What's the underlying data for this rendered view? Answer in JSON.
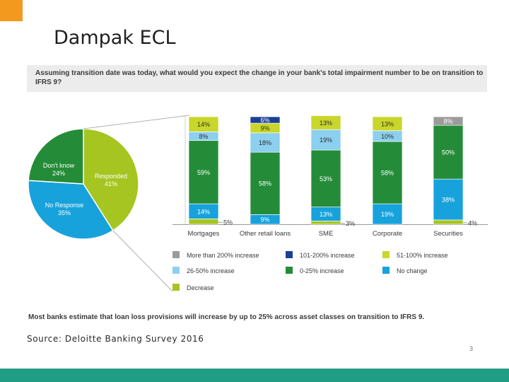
{
  "slide": {
    "title": "Dampak ECL",
    "question": "Assuming transition date was today, what would you expect the change in your bank's total impairment number to be on transition to IFRS 9?",
    "footnote": "Most banks estimate that loan loss provisions will increase by up to 25% across asset classes on transition to IFRS 9.",
    "source": "Source: Deloitte Banking Survey 2016",
    "page_number": "3"
  },
  "colors": {
    "accent_orange": "#f39a1e",
    "footer_teal": "#1f9e83"
  },
  "chart_data": [
    {
      "type": "pie",
      "slices": [
        {
          "name": "Responded",
          "value": 41,
          "label": "41%",
          "color": "#a6c521"
        },
        {
          "name": "No Response",
          "value": 35,
          "label": "35%",
          "color": "#17a2dc"
        },
        {
          "name": "Don't know",
          "value": 24,
          "label": "24%",
          "color": "#248c38"
        }
      ]
    },
    {
      "type": "bar",
      "stacked": true,
      "categories": [
        "Mortgages",
        "Other retail loans",
        "SME",
        "Corporate",
        "Securities"
      ],
      "series": [
        {
          "name": "Decrease",
          "color": "#a6c521",
          "values": [
            5,
            0,
            3,
            0,
            4
          ],
          "labels": [
            "5%",
            "",
            "3%",
            "",
            "4%"
          ]
        },
        {
          "name": "No change",
          "color": "#17a2dc",
          "values": [
            14,
            9,
            13,
            19,
            38
          ],
          "labels": [
            "14%",
            "9%",
            "13%",
            "19%",
            "38%"
          ]
        },
        {
          "name": "0-25% increase",
          "color": "#248c38",
          "values": [
            59,
            58,
            53,
            58,
            50
          ],
          "labels": [
            "59%",
            "58%",
            "53%",
            "58%",
            "50%"
          ]
        },
        {
          "name": "26-50% increase",
          "color": "#8ccfee",
          "values": [
            8,
            18,
            19,
            10,
            0
          ],
          "labels": [
            "8%",
            "18%",
            "19%",
            "10%",
            ""
          ]
        },
        {
          "name": "51-100% increase",
          "color": "#c9d62b",
          "values": [
            14,
            9,
            13,
            13,
            0
          ],
          "labels": [
            "14%",
            "9%",
            "13%",
            "13%",
            ""
          ]
        },
        {
          "name": "101-200% increase",
          "color": "#1c3f94",
          "values": [
            0,
            6,
            0,
            0,
            0
          ],
          "labels": [
            "",
            "6%",
            "",
            "",
            ""
          ]
        },
        {
          "name": "More than 200% increase",
          "color": "#9b9b9b",
          "values": [
            0,
            0,
            0,
            0,
            8
          ],
          "labels": [
            "",
            "",
            "",
            "",
            "8%"
          ]
        }
      ],
      "legend_order": [
        "More than 200% increase",
        "101-200% increase",
        "51-100% increase",
        "26-50% increase",
        "0-25% increase",
        "No change",
        "Decrease"
      ],
      "legend_placement": "bottom",
      "ylim": [
        0,
        100
      ]
    }
  ]
}
